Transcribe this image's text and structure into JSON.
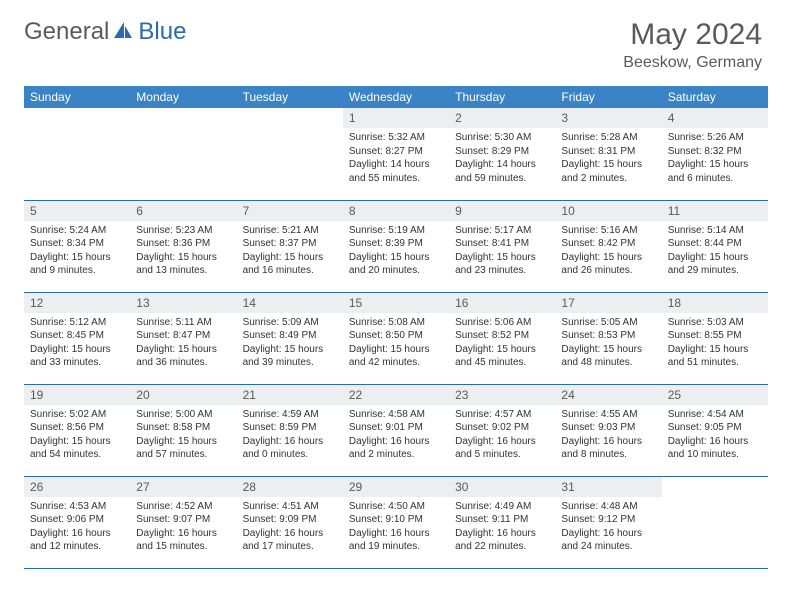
{
  "brand": {
    "part1": "General",
    "part2": "Blue"
  },
  "title": "May 2024",
  "location": "Beeskow, Germany",
  "colors": {
    "header_bg": "#3a83c4",
    "header_text": "#ffffff",
    "daynum_bg": "#eceff1",
    "body_text": "#333333",
    "title_text": "#5a5a5a",
    "rule": "#2a6ab0",
    "logo_blue": "#2a6ab0"
  },
  "weekdays": [
    "Sunday",
    "Monday",
    "Tuesday",
    "Wednesday",
    "Thursday",
    "Friday",
    "Saturday"
  ],
  "weeks": [
    [
      null,
      null,
      null,
      {
        "n": "1",
        "sr": "5:32 AM",
        "ss": "8:27 PM",
        "dl": "14 hours and 55 minutes."
      },
      {
        "n": "2",
        "sr": "5:30 AM",
        "ss": "8:29 PM",
        "dl": "14 hours and 59 minutes."
      },
      {
        "n": "3",
        "sr": "5:28 AM",
        "ss": "8:31 PM",
        "dl": "15 hours and 2 minutes."
      },
      {
        "n": "4",
        "sr": "5:26 AM",
        "ss": "8:32 PM",
        "dl": "15 hours and 6 minutes."
      }
    ],
    [
      {
        "n": "5",
        "sr": "5:24 AM",
        "ss": "8:34 PM",
        "dl": "15 hours and 9 minutes."
      },
      {
        "n": "6",
        "sr": "5:23 AM",
        "ss": "8:36 PM",
        "dl": "15 hours and 13 minutes."
      },
      {
        "n": "7",
        "sr": "5:21 AM",
        "ss": "8:37 PM",
        "dl": "15 hours and 16 minutes."
      },
      {
        "n": "8",
        "sr": "5:19 AM",
        "ss": "8:39 PM",
        "dl": "15 hours and 20 minutes."
      },
      {
        "n": "9",
        "sr": "5:17 AM",
        "ss": "8:41 PM",
        "dl": "15 hours and 23 minutes."
      },
      {
        "n": "10",
        "sr": "5:16 AM",
        "ss": "8:42 PM",
        "dl": "15 hours and 26 minutes."
      },
      {
        "n": "11",
        "sr": "5:14 AM",
        "ss": "8:44 PM",
        "dl": "15 hours and 29 minutes."
      }
    ],
    [
      {
        "n": "12",
        "sr": "5:12 AM",
        "ss": "8:45 PM",
        "dl": "15 hours and 33 minutes."
      },
      {
        "n": "13",
        "sr": "5:11 AM",
        "ss": "8:47 PM",
        "dl": "15 hours and 36 minutes."
      },
      {
        "n": "14",
        "sr": "5:09 AM",
        "ss": "8:49 PM",
        "dl": "15 hours and 39 minutes."
      },
      {
        "n": "15",
        "sr": "5:08 AM",
        "ss": "8:50 PM",
        "dl": "15 hours and 42 minutes."
      },
      {
        "n": "16",
        "sr": "5:06 AM",
        "ss": "8:52 PM",
        "dl": "15 hours and 45 minutes."
      },
      {
        "n": "17",
        "sr": "5:05 AM",
        "ss": "8:53 PM",
        "dl": "15 hours and 48 minutes."
      },
      {
        "n": "18",
        "sr": "5:03 AM",
        "ss": "8:55 PM",
        "dl": "15 hours and 51 minutes."
      }
    ],
    [
      {
        "n": "19",
        "sr": "5:02 AM",
        "ss": "8:56 PM",
        "dl": "15 hours and 54 minutes."
      },
      {
        "n": "20",
        "sr": "5:00 AM",
        "ss": "8:58 PM",
        "dl": "15 hours and 57 minutes."
      },
      {
        "n": "21",
        "sr": "4:59 AM",
        "ss": "8:59 PM",
        "dl": "16 hours and 0 minutes."
      },
      {
        "n": "22",
        "sr": "4:58 AM",
        "ss": "9:01 PM",
        "dl": "16 hours and 2 minutes."
      },
      {
        "n": "23",
        "sr": "4:57 AM",
        "ss": "9:02 PM",
        "dl": "16 hours and 5 minutes."
      },
      {
        "n": "24",
        "sr": "4:55 AM",
        "ss": "9:03 PM",
        "dl": "16 hours and 8 minutes."
      },
      {
        "n": "25",
        "sr": "4:54 AM",
        "ss": "9:05 PM",
        "dl": "16 hours and 10 minutes."
      }
    ],
    [
      {
        "n": "26",
        "sr": "4:53 AM",
        "ss": "9:06 PM",
        "dl": "16 hours and 12 minutes."
      },
      {
        "n": "27",
        "sr": "4:52 AM",
        "ss": "9:07 PM",
        "dl": "16 hours and 15 minutes."
      },
      {
        "n": "28",
        "sr": "4:51 AM",
        "ss": "9:09 PM",
        "dl": "16 hours and 17 minutes."
      },
      {
        "n": "29",
        "sr": "4:50 AM",
        "ss": "9:10 PM",
        "dl": "16 hours and 19 minutes."
      },
      {
        "n": "30",
        "sr": "4:49 AM",
        "ss": "9:11 PM",
        "dl": "16 hours and 22 minutes."
      },
      {
        "n": "31",
        "sr": "4:48 AM",
        "ss": "9:12 PM",
        "dl": "16 hours and 24 minutes."
      },
      null
    ]
  ],
  "labels": {
    "sunrise": "Sunrise:",
    "sunset": "Sunset:",
    "daylight": "Daylight:"
  }
}
